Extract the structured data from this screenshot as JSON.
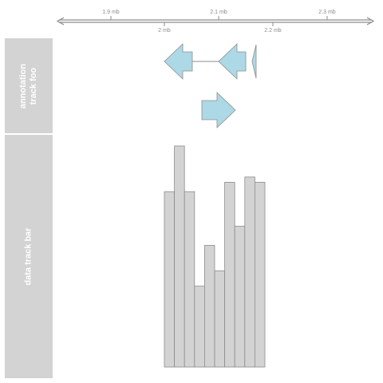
{
  "axis": {
    "top_ticks": [
      "1.9 mb",
      "2.1 mb",
      "2.3 mb"
    ],
    "bottom_ticks": [
      "2 mb",
      "2.2 mb"
    ],
    "color": "#8c8c8c"
  },
  "annotation_track": {
    "label_line1": "annotation",
    "label_line2": "track foo",
    "fill_color": "#add8e6",
    "stroke_color": "#8c8c8c"
  },
  "data_track": {
    "label": "data track bar",
    "bar_fill": "#d3d3d3",
    "bar_stroke": "#8c8c8c"
  },
  "chart_data": {
    "type": "bar",
    "yticks": [
      "0.1",
      "0.2",
      "0.3",
      "0.4",
      "0.5",
      "0.6"
    ],
    "ylim": [
      0,
      0.63
    ],
    "values": [
      0.503,
      0.634,
      0.503,
      0.232,
      0.349,
      0.276,
      0.53,
      0.404,
      0.545,
      0.53
    ]
  }
}
